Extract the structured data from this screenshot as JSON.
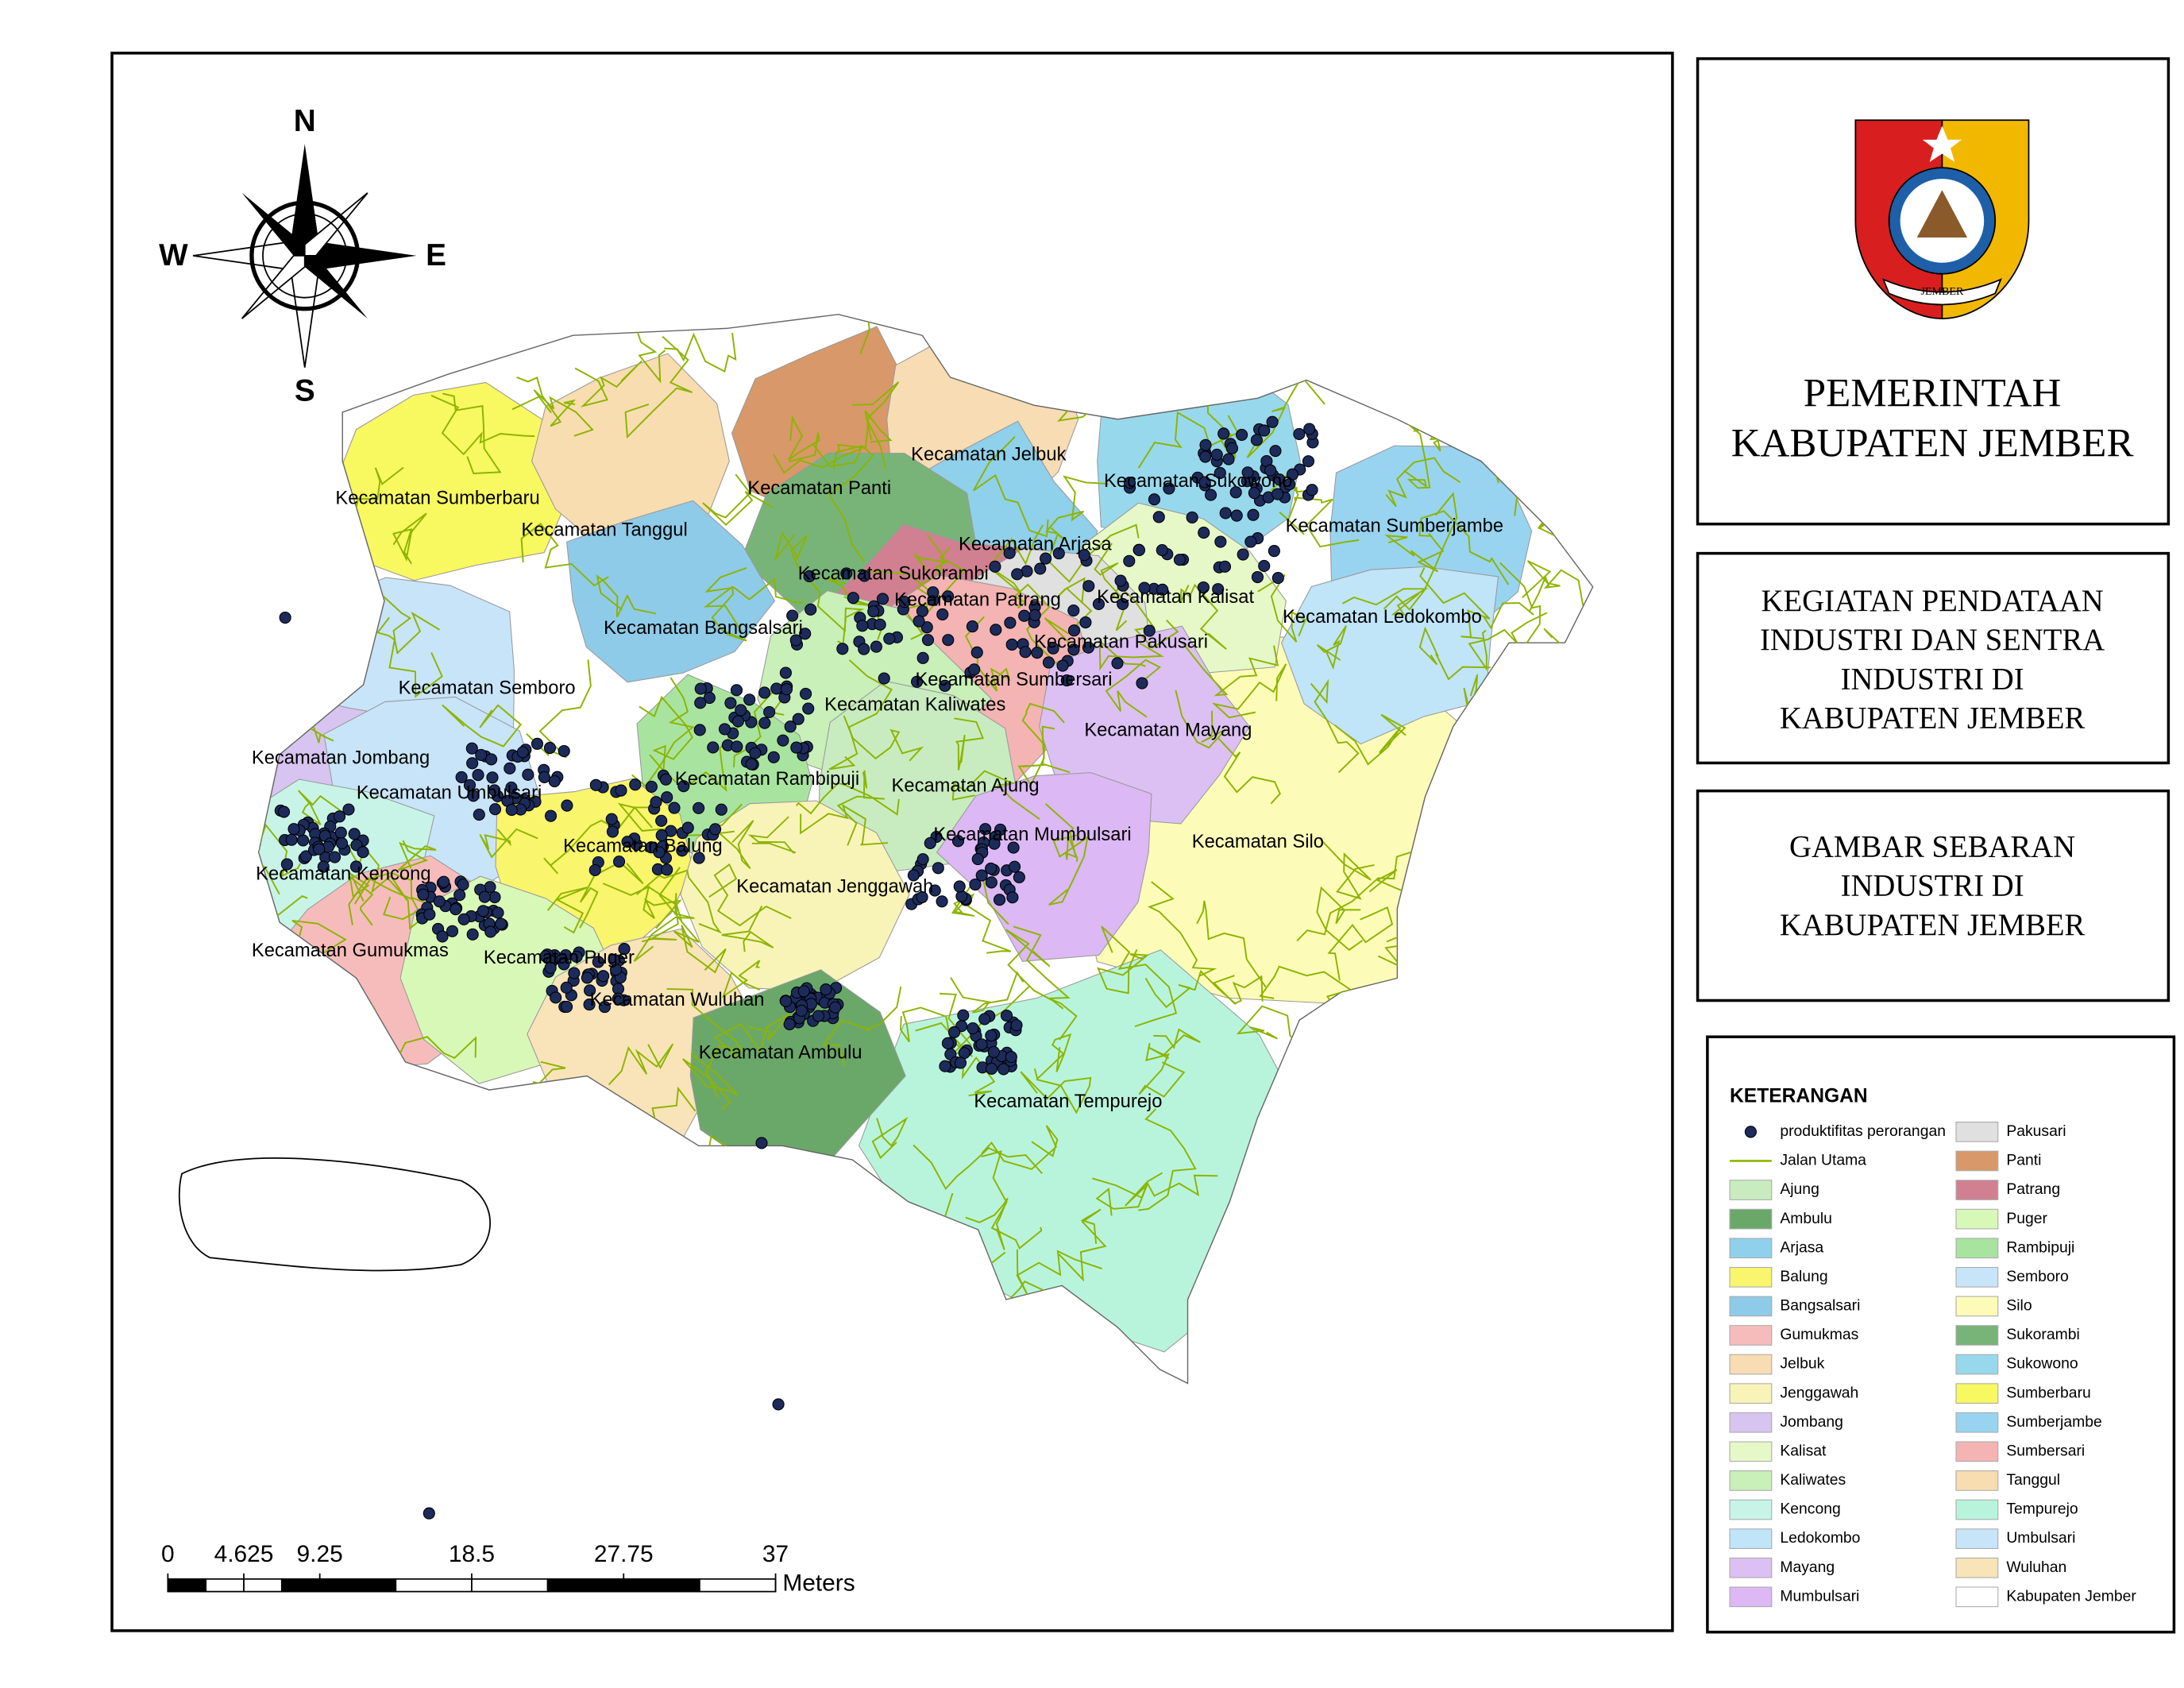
{
  "header": {
    "logo_text": "JEMBER",
    "title": [
      "PEMERINTAH",
      "KABUPATEN JEMBER"
    ]
  },
  "activity": [
    "KEGIATAN PENDATAAN",
    "INDUSTRI DAN SENTRA",
    "INDUSTRI DI",
    "KABUPATEN JEMBER"
  ],
  "figure": [
    "GAMBAR SEBARAN",
    "INDUSTRI DI",
    "KABUPATEN JEMBER"
  ],
  "map": {
    "compass": {
      "n": "N",
      "e": "E",
      "s": "S",
      "w": "W"
    },
    "districts": [
      "Kecamatan Sumberbaru",
      "Kecamatan Tanggul",
      "Kecamatan Panti",
      "Kecamatan Jelbuk",
      "Kecamatan Sukowono",
      "Kecamatan Sumberjambe",
      "Kecamatan Arjasa",
      "Kecamatan Sukorambi",
      "Kecamatan Bangsalsari",
      "Kecamatan Patrang",
      "Kecamatan Kalisat",
      "Kecamatan Ledokombo",
      "Kecamatan Pakusari",
      "Kecamatan Semboro",
      "Kecamatan Sumbersari",
      "Kecamatan Kaliwates",
      "Kecamatan Mayang",
      "Kecamatan Jombang",
      "Kecamatan Umbulsari",
      "Kecamatan Rambipuji",
      "Kecamatan Ajung",
      "Kecamatan Mumbulsari",
      "Kecamatan Silo",
      "Kecamatan Balung",
      "Kecamatan Kencong",
      "Kecamatan Jenggawah",
      "Kecamatan Gumukmas",
      "Kecamatan Puger",
      "Kecamatan Wuluhan",
      "Kecamatan Ambulu",
      "Kecamatan Tempurejo"
    ],
    "scale_bar": {
      "ticks": [
        0,
        4.625,
        9.25,
        18.5,
        27.75,
        37
      ],
      "unit": "Meters"
    }
  },
  "legend": {
    "title": "KETERANGAN",
    "items": [
      {
        "label": "produktifitas perorangan",
        "symbol": "dot",
        "color": "#1c2b5a"
      },
      {
        "label": "Jalan Utama",
        "symbol": "line",
        "color": "#8cb400"
      },
      {
        "label": "Ajung",
        "color": "#c8ecc0"
      },
      {
        "label": "Ambulu",
        "color": "#6aa86a"
      },
      {
        "label": "Arjasa",
        "color": "#8fd0ea"
      },
      {
        "label": "Balung",
        "color": "#f9f56c"
      },
      {
        "label": "Bangsalsari",
        "color": "#8ecbe8"
      },
      {
        "label": "Gumukmas",
        "color": "#f6bcbc"
      },
      {
        "label": "Jelbuk",
        "color": "#f8dcb4"
      },
      {
        "label": "Jenggawah",
        "color": "#f8f4b8"
      },
      {
        "label": "Jombang",
        "color": "#d8c4f0"
      },
      {
        "label": "Kalisat",
        "color": "#e6f8c8"
      },
      {
        "label": "Kaliwates",
        "color": "#c8f0b8"
      },
      {
        "label": "Kencong",
        "color": "#c8f4e8"
      },
      {
        "label": "Ledokombo",
        "color": "#c0e4f8"
      },
      {
        "label": "Mayang",
        "color": "#dcc0f4"
      },
      {
        "label": "Mumbulsari",
        "color": "#dcb8f4"
      },
      {
        "label": "Pakusari",
        "color": "#e0e0e0"
      },
      {
        "label": "Panti",
        "color": "#d8986a"
      },
      {
        "label": "Patrang",
        "color": "#d08090"
      },
      {
        "label": "Puger",
        "color": "#d8f8b8"
      },
      {
        "label": "Rambipuji",
        "color": "#a8e4a0"
      },
      {
        "label": "Semboro",
        "color": "#c8e4f8"
      },
      {
        "label": "Silo",
        "color": "#fcfcb8"
      },
      {
        "label": "Sukorambi",
        "color": "#78b478"
      },
      {
        "label": "Sukowono",
        "color": "#98d8ec"
      },
      {
        "label": "Sumberbaru",
        "color": "#f8f860"
      },
      {
        "label": "Sumberjambe",
        "color": "#98d4f0"
      },
      {
        "label": "Sumbersari",
        "color": "#f4b4b4"
      },
      {
        "label": "Tanggul",
        "color": "#f8ddb0"
      },
      {
        "label": "Tempurejo",
        "color": "#b8f4dc"
      },
      {
        "label": "Umbulsari",
        "color": "#c8e4f8"
      },
      {
        "label": "Wuluhan",
        "color": "#f8e4b8"
      },
      {
        "label": "Kabupaten Jember",
        "color": "#ffffff"
      }
    ]
  }
}
